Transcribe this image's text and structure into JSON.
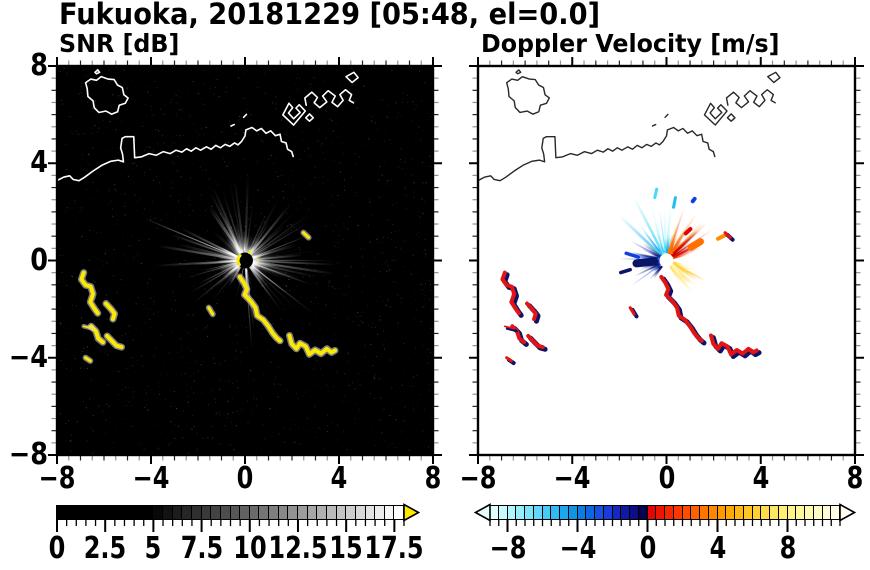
{
  "figure": {
    "title": "Fukuoka, 20181229 [05:48, el=0.0]"
  },
  "panels": {
    "snr": {
      "title": "SNR [dB]"
    },
    "velocity": {
      "title": "Doppler Velocity [m/s]"
    }
  },
  "axes": {
    "x_tick_labels": [
      "−8",
      "−4",
      "0",
      "4",
      "8"
    ],
    "x_tick_values": [
      -8,
      -4,
      0,
      4,
      8
    ],
    "y_tick_labels": [
      "8",
      "4",
      "0",
      "−4",
      "−8"
    ],
    "y_tick_values": [
      8,
      4,
      0,
      -4,
      -8
    ],
    "range": [
      -8,
      8
    ],
    "minor_step": 0.5,
    "major_step": 4
  },
  "colorbars": {
    "snr": {
      "min": 0,
      "max": 18,
      "cell_step": 0.5,
      "labels": [
        "0",
        "2.5",
        "5",
        "7.5",
        "10",
        "12.5",
        "15",
        "17.5"
      ],
      "label_values": [
        0,
        2.5,
        5,
        7.5,
        10,
        12.5,
        15,
        17.5
      ],
      "major_tick_step": 2.5,
      "over_arrow_color": "#ffe800",
      "cells": [
        "#000000",
        "#000000",
        "#000000",
        "#000000",
        "#000000",
        "#000000",
        "#000000",
        "#000000",
        "#000000",
        "#000000",
        "#080808",
        "#121212",
        "#1c1c1c",
        "#262626",
        "#2f2f2f",
        "#393939",
        "#434343",
        "#4d4d4d",
        "#575757",
        "#616161",
        "#6b6b6b",
        "#757575",
        "#7f7f7f",
        "#888888",
        "#929292",
        "#9c9c9c",
        "#a6a6a6",
        "#b0b0b0",
        "#bababa",
        "#c4c4c4",
        "#cecece",
        "#d8d8d8",
        "#e2e2e2",
        "#ebebeb",
        "#f5f5f5",
        "#ffffff"
      ]
    },
    "velocity": {
      "min": -9,
      "max": 11,
      "cell_step": 0.5,
      "labels": [
        "−8",
        "−4",
        "0",
        "4",
        "8"
      ],
      "label_values": [
        -8,
        -4,
        0,
        4,
        8
      ],
      "under_arrow_color": "#e6ffff",
      "over_arrow_color": "#fffef0",
      "cells": [
        "#e0ffff",
        "#c8fbff",
        "#b0f6fe",
        "#96eefc",
        "#7ce4fa",
        "#62d8f8",
        "#48caf6",
        "#30baf2",
        "#1ca8ee",
        "#0f94e8",
        "#0a7ee2",
        "#0e66e0",
        "#1650de",
        "#1a3cd6",
        "#1628c0",
        "#1118a4",
        "#0b0e86",
        "#04044e",
        "#e80400",
        "#f01400",
        "#f62600",
        "#fa3800",
        "#fe4c00",
        "#ff6000",
        "#ff7400",
        "#ff8800",
        "#ff9a00",
        "#ffaa04",
        "#ffb812",
        "#ffc524",
        "#ffd138",
        "#ffdc4c",
        "#ffe660",
        "#ffee74",
        "#fff488",
        "#fff89c",
        "#fffbb0",
        "#fffdc4",
        "#fffed6",
        "#fffee8"
      ]
    }
  },
  "chart_data": {
    "type": "radar_ppi_pair",
    "site_label": "Fukuoka",
    "date_label": "20181229",
    "time_label": "05:48",
    "elevation_label": "0.0",
    "x_range": [
      -8,
      8
    ],
    "y_range": [
      -8,
      8
    ],
    "radar_center": [
      0,
      0
    ],
    "coastline": [
      {
        "closed": true,
        "pts": [
          [
            -6.75,
            7.1
          ],
          [
            -6.82,
            7.35
          ],
          [
            -6.6,
            7.5
          ],
          [
            -6.35,
            7.45
          ],
          [
            -6.15,
            7.6
          ],
          [
            -5.85,
            7.5
          ],
          [
            -5.6,
            7.48
          ],
          [
            -5.45,
            7.25
          ],
          [
            -5.25,
            7.15
          ],
          [
            -5.18,
            6.85
          ],
          [
            -5.0,
            6.72
          ],
          [
            -5.12,
            6.5
          ],
          [
            -5.38,
            6.42
          ],
          [
            -5.45,
            6.15
          ],
          [
            -5.7,
            6.05
          ],
          [
            -5.95,
            6.18
          ],
          [
            -6.25,
            6.12
          ],
          [
            -6.45,
            6.32
          ],
          [
            -6.5,
            6.6
          ],
          [
            -6.72,
            6.78
          ]
        ]
      },
      {
        "closed": true,
        "pts": [
          [
            -6.42,
            7.78
          ],
          [
            -6.3,
            7.88
          ],
          [
            -6.22,
            7.78
          ],
          [
            -6.35,
            7.72
          ]
        ]
      },
      {
        "closed": false,
        "pts": [
          [
            -8.05,
            3.3
          ],
          [
            -7.75,
            3.45
          ],
          [
            -7.5,
            3.5
          ],
          [
            -7.35,
            3.35
          ],
          [
            -7.1,
            3.3
          ],
          [
            -6.85,
            3.45
          ],
          [
            -6.5,
            3.7
          ],
          [
            -6.1,
            3.95
          ],
          [
            -5.75,
            4.1
          ],
          [
            -5.42,
            4.15
          ],
          [
            -5.2,
            4.08
          ],
          [
            -5.24,
            4.4
          ],
          [
            -5.32,
            4.65
          ],
          [
            -5.26,
            5.05
          ],
          [
            -5.12,
            5.12
          ],
          [
            -4.76,
            5.12
          ],
          [
            -4.72,
            4.25
          ],
          [
            -4.45,
            4.28
          ],
          [
            -4.1,
            4.42
          ],
          [
            -3.8,
            4.35
          ],
          [
            -3.5,
            4.5
          ],
          [
            -3.2,
            4.42
          ],
          [
            -2.95,
            4.56
          ],
          [
            -2.7,
            4.48
          ],
          [
            -2.5,
            4.62
          ],
          [
            -2.3,
            4.52
          ],
          [
            -2.1,
            4.66
          ],
          [
            -1.9,
            4.56
          ],
          [
            -1.65,
            4.7
          ],
          [
            -1.45,
            4.6
          ],
          [
            -1.25,
            4.76
          ],
          [
            -1.05,
            4.66
          ],
          [
            -0.85,
            4.8
          ],
          [
            -0.65,
            4.72
          ],
          [
            -0.45,
            4.86
          ],
          [
            -0.3,
            4.78
          ],
          [
            -0.15,
            4.92
          ],
          [
            0.0,
            5.15
          ],
          [
            0.04,
            5.4
          ],
          [
            0.3,
            5.5
          ],
          [
            0.5,
            5.36
          ],
          [
            0.7,
            5.46
          ],
          [
            0.9,
            5.26
          ],
          [
            1.1,
            5.36
          ],
          [
            1.3,
            5.16
          ],
          [
            1.5,
            5.22
          ],
          [
            1.56,
            4.92
          ],
          [
            1.76,
            4.86
          ],
          [
            1.82,
            4.6
          ],
          [
            2.0,
            4.5
          ],
          [
            2.06,
            4.3
          ]
        ]
      },
      {
        "closed": true,
        "pts": [
          [
            1.62,
            6.02
          ],
          [
            2.08,
            5.6
          ],
          [
            2.58,
            6.18
          ],
          [
            2.32,
            6.44
          ],
          [
            2.18,
            6.3
          ],
          [
            2.36,
            6.12
          ],
          [
            2.08,
            5.86
          ],
          [
            1.86,
            6.1
          ],
          [
            2.04,
            6.32
          ],
          [
            1.88,
            6.5
          ]
        ]
      },
      {
        "closed": false,
        "pts": [
          [
            2.62,
            6.42
          ],
          [
            2.56,
            6.72
          ],
          [
            2.86,
            6.96
          ],
          [
            3.1,
            6.74
          ],
          [
            2.96,
            6.52
          ],
          [
            3.2,
            6.32
          ],
          [
            3.5,
            6.56
          ],
          [
            3.32,
            6.8
          ],
          [
            3.56,
            7.02
          ],
          [
            3.86,
            6.8
          ],
          [
            3.72,
            6.54
          ],
          [
            3.96,
            6.36
          ],
          [
            4.2,
            6.62
          ],
          [
            4.06,
            6.86
          ],
          [
            4.3,
            7.06
          ],
          [
            4.56,
            6.86
          ],
          [
            4.46,
            6.62
          ],
          [
            4.64,
            6.52
          ]
        ]
      },
      {
        "closed": true,
        "pts": [
          [
            4.32,
            7.6
          ],
          [
            4.58,
            7.36
          ],
          [
            4.84,
            7.56
          ],
          [
            4.66,
            7.78
          ]
        ]
      },
      {
        "closed": true,
        "pts": [
          [
            2.6,
            5.9
          ],
          [
            2.76,
            6.06
          ],
          [
            2.92,
            5.9
          ],
          [
            2.76,
            5.76
          ]
        ]
      },
      {
        "closed": false,
        "pts": [
          [
            -0.06,
            5.92
          ],
          [
            0.06,
            6.04
          ]
        ]
      },
      {
        "closed": false,
        "pts": [
          [
            -0.6,
            5.56
          ],
          [
            -0.46,
            5.62
          ]
        ]
      }
    ],
    "echoes": [
      {
        "w": 4,
        "pts": [
          [
            -6.9,
            -0.5
          ],
          [
            -7.0,
            -0.78
          ],
          [
            -6.82,
            -1.02
          ],
          [
            -6.6,
            -1.08
          ],
          [
            -6.5,
            -1.38
          ],
          [
            -6.62,
            -1.72
          ],
          [
            -6.42,
            -2.02
          ],
          [
            -6.3,
            -2.18
          ]
        ]
      },
      {
        "w": 4,
        "pts": [
          [
            -5.95,
            -1.78
          ],
          [
            -5.72,
            -2.02
          ],
          [
            -5.58,
            -2.2
          ],
          [
            -5.65,
            -2.42
          ]
        ]
      },
      {
        "w": 4,
        "pts": [
          [
            -6.58,
            -2.72
          ],
          [
            -6.38,
            -2.92
          ],
          [
            -6.28,
            -3.22
          ],
          [
            -6.08,
            -3.38
          ]
        ]
      },
      {
        "w": 4,
        "pts": [
          [
            -5.9,
            -3.12
          ],
          [
            -5.7,
            -3.32
          ],
          [
            -5.5,
            -3.52
          ],
          [
            -5.28,
            -3.58
          ]
        ]
      },
      {
        "w": 1.6,
        "pts": [
          [
            -6.9,
            -2.72
          ],
          [
            -6.5,
            -2.82
          ]
        ]
      },
      {
        "w": 3,
        "pts": [
          [
            -6.82,
            -4.02
          ],
          [
            -6.62,
            -4.15
          ]
        ]
      },
      {
        "w": 4,
        "pts": [
          [
            -0.22,
            -0.68
          ],
          [
            -0.05,
            -0.92
          ],
          [
            0.08,
            -1.18
          ],
          [
            -0.02,
            -1.42
          ],
          [
            0.25,
            -1.68
          ],
          [
            0.45,
            -1.95
          ],
          [
            0.52,
            -2.28
          ],
          [
            0.78,
            -2.45
          ],
          [
            1.0,
            -2.72
          ],
          [
            1.18,
            -3.0
          ],
          [
            1.35,
            -3.2
          ],
          [
            1.5,
            -3.32
          ]
        ]
      },
      {
        "w": 4,
        "pts": [
          [
            1.9,
            -3.1
          ],
          [
            2.0,
            -3.45
          ],
          [
            2.2,
            -3.65
          ],
          [
            2.35,
            -3.42
          ],
          [
            2.6,
            -3.55
          ],
          [
            2.75,
            -3.88
          ],
          [
            3.0,
            -3.7
          ],
          [
            3.25,
            -3.85
          ],
          [
            3.5,
            -3.65
          ],
          [
            3.7,
            -3.8
          ],
          [
            3.85,
            -3.72
          ]
        ]
      },
      {
        "w": 3,
        "pts": [
          [
            -1.55,
            -1.95
          ],
          [
            -1.38,
            -2.22
          ]
        ]
      },
      {
        "w": 3,
        "pts": [
          [
            2.5,
            1.15
          ],
          [
            2.72,
            0.95
          ]
        ]
      }
    ],
    "snr_panel": {
      "background": "#000000",
      "coast_color": "#ffffff",
      "streak_color": "#ffffff",
      "echo_color": "#fce903",
      "echo_halo": "#dcdcdc"
    },
    "velocity_panel": {
      "background": "#ffffff",
      "coast_color": "#282828",
      "echo_pos_color": "#e41414",
      "echo_neg_color": "#0a1468",
      "fans": [
        {
          "name": "up-cyan",
          "angles": [
            76,
            142
          ],
          "count": 36,
          "maxlen": 2.7,
          "palette": [
            "#49d8f8",
            "#86eafa",
            "#22bcf2",
            "#b4f4fc",
            "#0aa0e8"
          ]
        },
        {
          "name": "left-blue",
          "angles": [
            142,
            216
          ],
          "count": 30,
          "maxlen": 1.8,
          "palette": [
            "#1846e0",
            "#0a22b2",
            "#2a66f4",
            "#07135e",
            "#1030cc"
          ]
        },
        {
          "name": "right-red",
          "angles": [
            10,
            76
          ],
          "count": 32,
          "maxlen": 2.0,
          "palette": [
            "#e81400",
            "#f85400",
            "#ff8a00",
            "#c40000",
            "#ff6a00"
          ]
        },
        {
          "name": "downright-yellow",
          "angles": [
            286,
            346
          ],
          "count": 64,
          "maxlen": 1.6,
          "palette": [
            "#ffe668",
            "#fff2a2",
            "#ffd73e",
            "#fff9c6",
            "#ffc22a",
            "#fffce0"
          ]
        },
        {
          "name": "downleft-navy",
          "angles": [
            218,
            258
          ],
          "count": 9,
          "maxlen": 1.1,
          "palette": [
            "#0a1070"
          ]
        }
      ],
      "features": [
        {
          "pts": [
            [
              -1.28,
              -0.12
            ],
            [
              -0.52,
              -0.04
            ]
          ],
          "color": "#0a1468",
          "width": 8
        },
        {
          "pts": [
            [
              -1.72,
              0.3
            ],
            [
              -1.2,
              0.14
            ]
          ],
          "color": "#1040e0",
          "width": 3.5
        },
        {
          "pts": [
            [
              -1.95,
              -0.5
            ],
            [
              -1.55,
              -0.38
            ]
          ],
          "color": "#0a1468",
          "width": 3.5
        },
        {
          "pts": [
            [
              1.05,
              0.55
            ],
            [
              1.45,
              0.78
            ]
          ],
          "color": "#ff7000",
          "width": 7
        },
        {
          "pts": [
            [
              0.82,
              1.12
            ],
            [
              1.02,
              1.3
            ]
          ],
          "color": "#e00000",
          "width": 4
        },
        {
          "pts": [
            [
              1.12,
              2.45
            ],
            [
              1.2,
              2.55
            ]
          ],
          "color": "#1040e0",
          "width": 4
        },
        {
          "pts": [
            [
              -0.5,
              2.6
            ],
            [
              -0.42,
              2.95
            ]
          ],
          "color": "#49d8f8",
          "width": 3
        },
        {
          "pts": [
            [
              0.3,
              2.2
            ],
            [
              0.38,
              2.6
            ]
          ],
          "color": "#22bcf2",
          "width": 3
        },
        {
          "pts": [
            [
              2.2,
              0.9
            ],
            [
              2.5,
              1.05
            ]
          ],
          "color": "#ff8a00",
          "width": 4
        }
      ]
    }
  }
}
